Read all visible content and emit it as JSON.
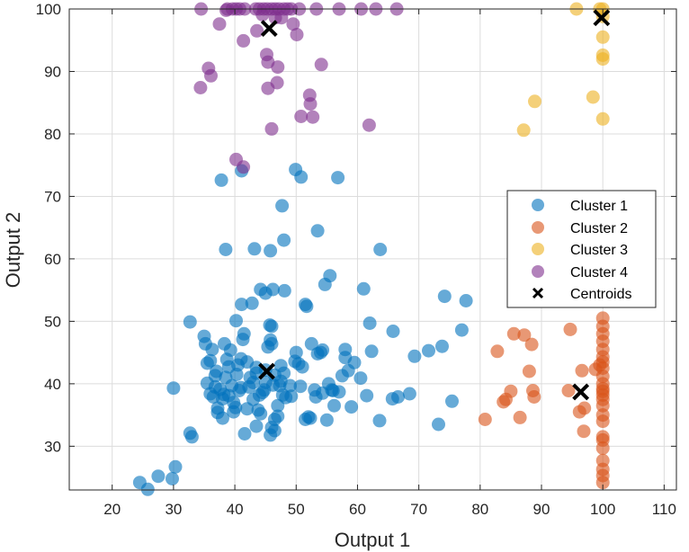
{
  "chart_data": {
    "type": "scatter",
    "title": "",
    "xlabel": "Output 1",
    "ylabel": "Output 2",
    "xlim": [
      13,
      112
    ],
    "ylim": [
      23,
      100
    ],
    "xticks": [
      20,
      30,
      40,
      50,
      60,
      70,
      80,
      90,
      100,
      110
    ],
    "yticks": [
      30,
      40,
      50,
      60,
      70,
      80,
      90,
      100
    ],
    "grid": true,
    "legend_position": "right",
    "colors": {
      "cluster1": "#0072BD",
      "cluster2": "#D95319",
      "cluster3": "#EDB120",
      "cluster4": "#7E2F8E",
      "centroid": "#000000"
    },
    "series": [
      {
        "name": "Cluster 1",
        "color": "#0072BD",
        "points": [
          [
            24.5,
            24.2
          ],
          [
            25.8,
            23.1
          ],
          [
            27.5,
            25.2
          ],
          [
            29.8,
            24.8
          ],
          [
            30.3,
            26.7
          ],
          [
            30.0,
            39.3
          ],
          [
            32.7,
            32.1
          ],
          [
            33.0,
            31.5
          ],
          [
            32.7,
            49.9
          ],
          [
            35.0,
            47.6
          ],
          [
            35.2,
            46.4
          ],
          [
            35.5,
            43.3
          ],
          [
            36.0,
            43.7
          ],
          [
            36.3,
            45.5
          ],
          [
            35.5,
            40.1
          ],
          [
            36.0,
            38.4
          ],
          [
            36.5,
            37.9
          ],
          [
            36.8,
            39.5
          ],
          [
            37.0,
            42.0
          ],
          [
            37.2,
            36.1
          ],
          [
            37.2,
            35.4
          ],
          [
            37.6,
            39.1
          ],
          [
            38.0,
            37.6
          ],
          [
            38.2,
            38.3
          ],
          [
            38.5,
            41.0
          ],
          [
            38.3,
            46.4
          ],
          [
            38.7,
            43.9
          ],
          [
            39.0,
            42.7
          ],
          [
            39.3,
            45.4
          ],
          [
            39.5,
            39.7
          ],
          [
            39.8,
            37.0
          ],
          [
            39.8,
            35.5
          ],
          [
            40.1,
            36.2
          ],
          [
            40.3,
            41.5
          ],
          [
            40.5,
            43.0
          ],
          [
            40.7,
            38.9
          ],
          [
            41.0,
            39.4
          ],
          [
            41.0,
            44.0
          ],
          [
            41.3,
            47.1
          ],
          [
            41.5,
            48.0
          ],
          [
            42.0,
            36.0
          ],
          [
            42.3,
            39.5
          ],
          [
            42.5,
            41.0
          ],
          [
            42.0,
            43.5
          ],
          [
            43.0,
            40.2
          ],
          [
            43.5,
            42.6
          ],
          [
            43.5,
            33.2
          ],
          [
            43.8,
            35.8
          ],
          [
            44.2,
            35.2
          ],
          [
            44.5,
            38.6
          ],
          [
            45.0,
            40.2
          ],
          [
            45.0,
            42.2
          ],
          [
            45.4,
            45.9
          ],
          [
            45.8,
            47.0
          ],
          [
            46.0,
            46.4
          ],
          [
            46.0,
            49.2
          ],
          [
            46.2,
            39.8
          ],
          [
            46.5,
            41.4
          ],
          [
            46.0,
            33.0
          ],
          [
            45.8,
            31.8
          ],
          [
            46.5,
            34.3
          ],
          [
            47.0,
            36.5
          ],
          [
            47.3,
            39.7
          ],
          [
            47.5,
            40.4
          ],
          [
            47.8,
            38.2
          ],
          [
            48.0,
            41.7
          ],
          [
            48.3,
            37.8
          ],
          [
            49.2,
            38.0
          ],
          [
            49.8,
            43.6
          ],
          [
            50.4,
            43.2
          ],
          [
            50.0,
            45.0
          ],
          [
            50.7,
            39.6
          ],
          [
            51.0,
            42.7
          ],
          [
            51.5,
            52.7
          ],
          [
            51.7,
            52.4
          ],
          [
            52.0,
            34.7
          ],
          [
            52.3,
            34.5
          ],
          [
            52.5,
            46.4
          ],
          [
            53.0,
            39.0
          ],
          [
            53.2,
            37.9
          ],
          [
            53.5,
            44.8
          ],
          [
            54.0,
            45.0
          ],
          [
            54.3,
            45.4
          ],
          [
            55.0,
            34.2
          ],
          [
            55.3,
            40.0
          ],
          [
            55.8,
            39.0
          ],
          [
            56.2,
            36.5
          ],
          [
            57.0,
            38.7
          ],
          [
            57.5,
            41.3
          ],
          [
            58.0,
            45.5
          ],
          [
            58.5,
            42.1
          ],
          [
            59.0,
            36.3
          ],
          [
            59.5,
            43.4
          ],
          [
            60.5,
            40.9
          ],
          [
            61.5,
            38.1
          ],
          [
            62.0,
            49.7
          ],
          [
            62.3,
            45.2
          ],
          [
            63.6,
            34.1
          ],
          [
            65.7,
            37.6
          ],
          [
            66.6,
            37.9
          ],
          [
            68.5,
            38.4
          ],
          [
            69.3,
            44.4
          ],
          [
            71.6,
            45.3
          ],
          [
            73.2,
            33.5
          ],
          [
            73.8,
            46.0
          ],
          [
            74.2,
            54.0
          ],
          [
            75.4,
            37.2
          ],
          [
            77.0,
            48.6
          ],
          [
            77.7,
            53.3
          ],
          [
            65.8,
            48.4
          ],
          [
            61.0,
            55.2
          ],
          [
            55.5,
            57.3
          ],
          [
            54.7,
            55.9
          ],
          [
            53.5,
            64.5
          ],
          [
            48.0,
            63.0
          ],
          [
            47.7,
            68.5
          ],
          [
            45.8,
            61.3
          ],
          [
            43.2,
            61.6
          ],
          [
            38.5,
            61.5
          ],
          [
            37.8,
            72.6
          ],
          [
            41.1,
            74.1
          ],
          [
            49.9,
            74.3
          ],
          [
            50.8,
            73.1
          ],
          [
            56.8,
            73.0
          ],
          [
            63.7,
            61.5
          ],
          [
            41.1,
            52.7
          ],
          [
            42.8,
            52.9
          ],
          [
            44.2,
            55.1
          ],
          [
            45.0,
            54.5
          ],
          [
            46.2,
            55.1
          ],
          [
            48.1,
            54.9
          ],
          [
            43.5,
            41.7
          ],
          [
            44.0,
            38.2
          ],
          [
            45.7,
            49.4
          ],
          [
            46.5,
            32.5
          ],
          [
            47.0,
            34.8
          ],
          [
            47.5,
            42.9
          ],
          [
            44.8,
            39.0
          ],
          [
            43.0,
            37.5
          ],
          [
            41.6,
            32.0
          ],
          [
            40.2,
            50.1
          ],
          [
            39.0,
            38.1
          ],
          [
            38.0,
            34.5
          ],
          [
            36.8,
            41.3
          ],
          [
            54.3,
            38.5
          ],
          [
            56.0,
            38.9
          ],
          [
            58.0,
            44.2
          ],
          [
            51.5,
            34.3
          ],
          [
            49.0,
            39.7
          ]
        ]
      },
      {
        "name": "Cluster 2",
        "color": "#D95319",
        "points": [
          [
            80.8,
            34.3
          ],
          [
            82.8,
            45.2
          ],
          [
            83.8,
            37.1
          ],
          [
            84.2,
            37.5
          ],
          [
            85.0,
            38.8
          ],
          [
            85.5,
            48.0
          ],
          [
            86.5,
            34.6
          ],
          [
            87.2,
            47.8
          ],
          [
            88.0,
            42.0
          ],
          [
            88.4,
            46.3
          ],
          [
            88.6,
            38.9
          ],
          [
            88.8,
            37.9
          ],
          [
            94.4,
            38.9
          ],
          [
            94.7,
            48.7
          ],
          [
            96.2,
            35.5
          ],
          [
            96.6,
            42.1
          ],
          [
            96.9,
            32.4
          ],
          [
            97.0,
            36.1
          ],
          [
            98.8,
            42.3
          ],
          [
            99.5,
            43.0
          ],
          [
            100,
            24.2
          ],
          [
            100,
            25.3
          ],
          [
            100,
            26.3
          ],
          [
            100,
            27.7
          ],
          [
            100,
            29.7
          ],
          [
            100,
            31.0
          ],
          [
            100,
            31.5
          ],
          [
            100,
            34.0
          ],
          [
            100,
            35.0
          ],
          [
            100,
            36.5
          ],
          [
            100,
            37.5
          ],
          [
            100,
            38.2
          ],
          [
            100,
            38.8
          ],
          [
            100,
            39.2
          ],
          [
            100,
            40.0
          ],
          [
            100,
            41.2
          ],
          [
            100,
            42.5
          ],
          [
            100,
            43.5
          ],
          [
            100,
            44.3
          ],
          [
            100,
            45.5
          ],
          [
            100,
            46.8
          ],
          [
            100,
            48.0
          ],
          [
            100,
            49.2
          ],
          [
            100,
            50.5
          ]
        ]
      },
      {
        "name": "Cluster 3",
        "color": "#EDB120",
        "points": [
          [
            95.7,
            100
          ],
          [
            99.5,
            100
          ],
          [
            100,
            100
          ],
          [
            100,
            98.8
          ],
          [
            100,
            95.5
          ],
          [
            100,
            92.6
          ],
          [
            100,
            92.0
          ],
          [
            100,
            82.4
          ],
          [
            98.4,
            85.9
          ],
          [
            88.9,
            85.2
          ],
          [
            87.1,
            80.6
          ]
        ]
      },
      {
        "name": "Cluster 4",
        "color": "#7E2F8E",
        "points": [
          [
            34.5,
            100
          ],
          [
            38.8,
            100
          ],
          [
            39.6,
            100
          ],
          [
            40.2,
            100
          ],
          [
            40.8,
            100
          ],
          [
            41.6,
            100
          ],
          [
            43.4,
            100
          ],
          [
            44.0,
            100
          ],
          [
            44.7,
            100
          ],
          [
            45.3,
            100
          ],
          [
            46.0,
            100
          ],
          [
            46.6,
            100
          ],
          [
            47.2,
            100
          ],
          [
            48.0,
            100
          ],
          [
            48.6,
            100
          ],
          [
            49.2,
            100
          ],
          [
            50.5,
            100
          ],
          [
            53.3,
            100
          ],
          [
            57.0,
            100
          ],
          [
            60.6,
            100
          ],
          [
            63.0,
            100
          ],
          [
            66.4,
            100
          ],
          [
            38.6,
            99.8
          ],
          [
            44.5,
            99.1
          ],
          [
            46.6,
            98.6
          ],
          [
            47.6,
            98.6
          ],
          [
            49.5,
            97.6
          ],
          [
            43.6,
            96.5
          ],
          [
            50.1,
            95.9
          ],
          [
            41.4,
            94.9
          ],
          [
            45.2,
            92.7
          ],
          [
            45.4,
            91.5
          ],
          [
            47.0,
            90.7
          ],
          [
            54.1,
            91.1
          ],
          [
            35.7,
            90.5
          ],
          [
            36.1,
            89.3
          ],
          [
            34.4,
            87.4
          ],
          [
            45.4,
            87.3
          ],
          [
            46.9,
            88.2
          ],
          [
            52.2,
            86.2
          ],
          [
            52.3,
            84.8
          ],
          [
            50.8,
            82.8
          ],
          [
            52.7,
            82.7
          ],
          [
            46.0,
            80.8
          ],
          [
            61.9,
            81.4
          ],
          [
            40.2,
            75.9
          ],
          [
            41.4,
            74.7
          ],
          [
            37.5,
            97.6
          ]
        ]
      }
    ],
    "centroids": {
      "name": "Centroids",
      "color": "#000000",
      "points": [
        [
          45.2,
          42.0
        ],
        [
          96.4,
          38.7
        ],
        [
          99.8,
          98.6
        ],
        [
          45.6,
          96.9
        ]
      ]
    },
    "legend": [
      "Cluster 1",
      "Cluster 2",
      "Cluster 3",
      "Cluster 4",
      "Centroids"
    ]
  }
}
